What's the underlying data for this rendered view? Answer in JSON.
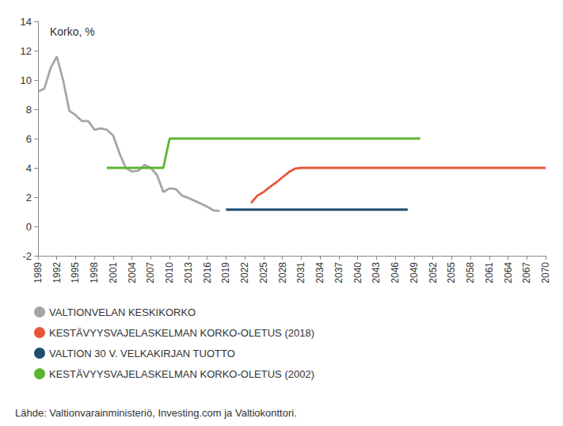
{
  "chart_data": {
    "type": "line",
    "ylabel": "Korko, %",
    "source": "Lähde: Valtionvarainministeriö, Investing.com ja Valtiokonttori.",
    "xlim": [
      1989,
      2070
    ],
    "xticks": [
      1989,
      1992,
      1995,
      1998,
      2001,
      2004,
      2007,
      2010,
      2013,
      2016,
      2019,
      2022,
      2025,
      2028,
      2031,
      2034,
      2037,
      2040,
      2043,
      2046,
      2049,
      2052,
      2055,
      2058,
      2061,
      2064,
      2067,
      2070
    ],
    "ylim": [
      -2,
      14
    ],
    "yticks": [
      -2,
      0,
      2,
      4,
      6,
      8,
      10,
      12,
      14
    ],
    "grid": false,
    "legend": "bottom-left",
    "series": [
      {
        "name": "VALTIONVELAN KESKIKORKO",
        "color": "#a6a6a6",
        "x": [
          1989,
          1990,
          1991,
          1992,
          1993,
          1994,
          1995,
          1996,
          1997,
          1998,
          1999,
          2000,
          2001,
          2002,
          2003,
          2004,
          2005,
          2006,
          2007,
          2008,
          2009,
          2010,
          2011,
          2012,
          2013,
          2014,
          2015,
          2016,
          2017,
          2018
        ],
        "values": [
          9.2,
          9.4,
          10.8,
          11.6,
          10.0,
          7.9,
          7.6,
          7.2,
          7.2,
          6.6,
          6.7,
          6.6,
          6.2,
          5.0,
          4.0,
          3.75,
          3.8,
          4.2,
          4.0,
          3.5,
          2.35,
          2.6,
          2.55,
          2.1,
          1.95,
          1.75,
          1.55,
          1.35,
          1.1,
          1.05
        ]
      },
      {
        "name": "KESTÄVYYSVAJELASKELMAN KORKO-OLETUS (2018)",
        "color": "#e8563a",
        "x": [
          2023,
          2024,
          2025,
          2026,
          2027,
          2028,
          2029,
          2030,
          2031,
          2070
        ],
        "values": [
          1.6,
          2.1,
          2.35,
          2.7,
          3.0,
          3.35,
          3.7,
          3.95,
          4.0,
          4.0
        ]
      },
      {
        "name": "VALTION 30 V. VELKAKIRJAN TUOTTO",
        "color": "#1f4e6e",
        "x": [
          2019,
          2048
        ],
        "values": [
          1.15,
          1.15
        ]
      },
      {
        "name": "KESTÄVYYSVAJELASKELMAN KORKO-OLETUS (2002)",
        "color": "#5cb531",
        "x": [
          2000,
          2009,
          2010,
          2050
        ],
        "values": [
          4.0,
          4.0,
          6.0,
          6.0
        ]
      }
    ]
  }
}
